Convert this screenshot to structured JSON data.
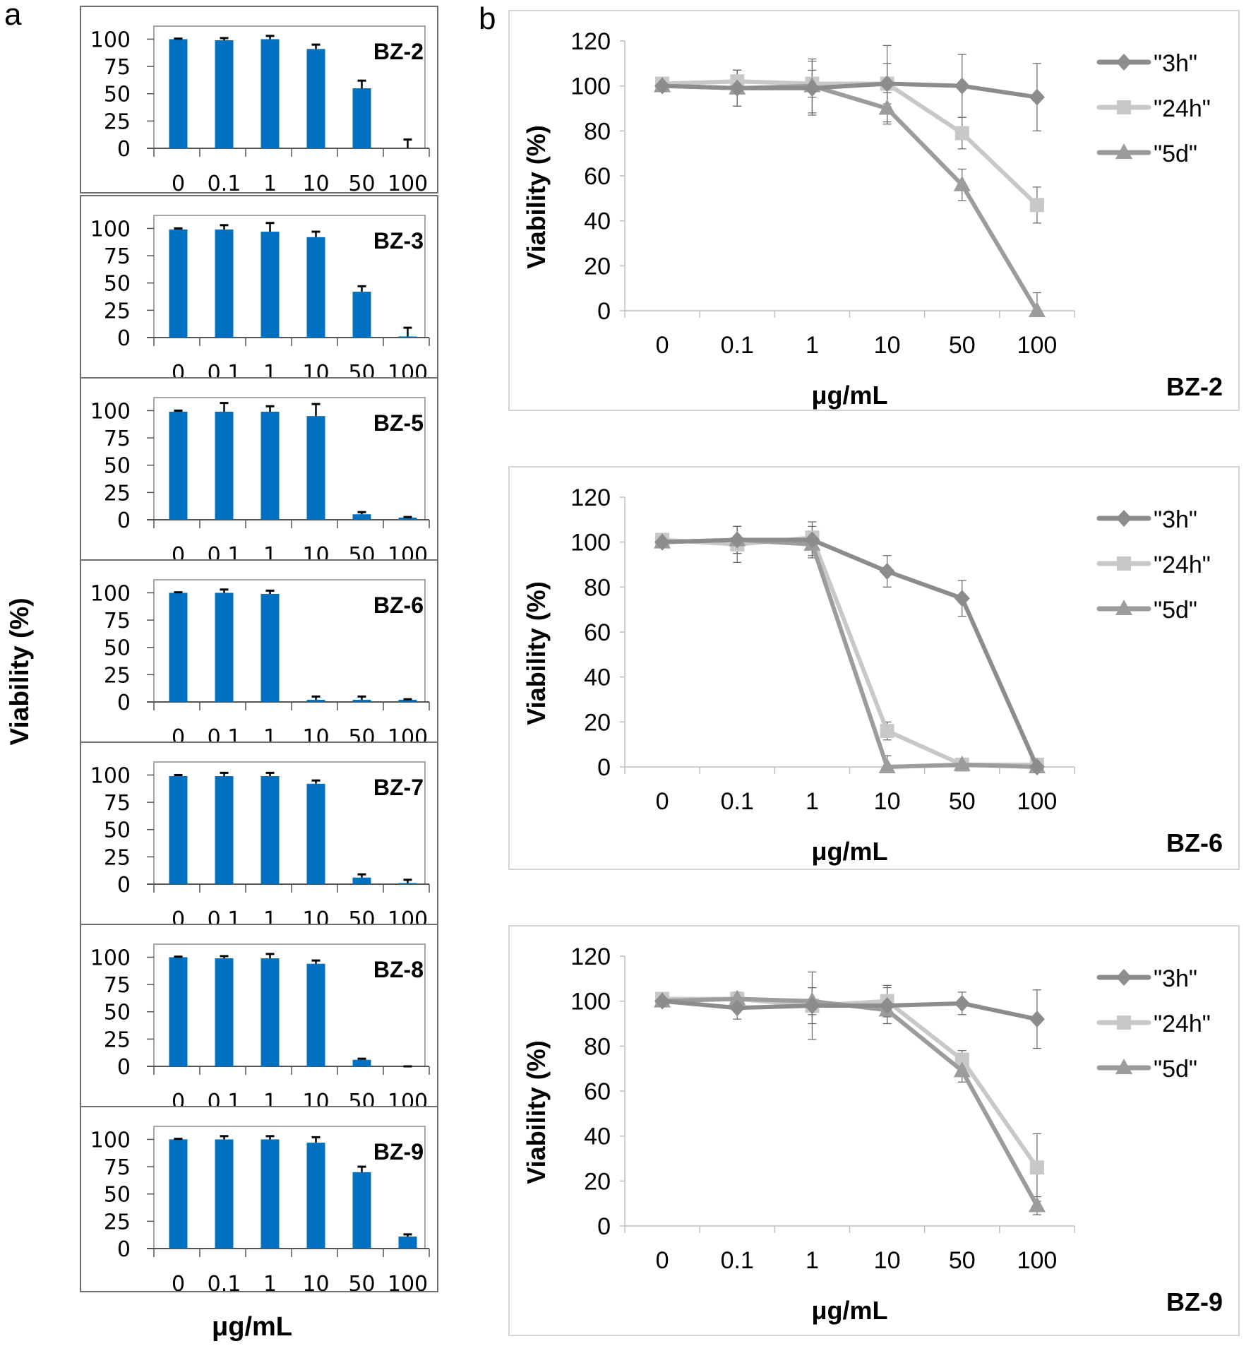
{
  "figure": {
    "panel_a_label": "a",
    "panel_b_label": "b",
    "panel_a_ylabel": "Viability (%)",
    "panel_a_xlabel": "μg/mL"
  },
  "colors": {
    "bar": "#0070c0",
    "error_bar": "#000000",
    "series_3h": "#8c8c8c",
    "series_24h": "#c8c8c8",
    "series_5d": "#9c9c9c",
    "line_axis": "#bfbfbf"
  },
  "chart_data": [
    {
      "type": "bar",
      "title": "BZ-2",
      "xlabel": "μg/mL",
      "ylabel": "Viability (%)",
      "categories": [
        "0",
        "0.1",
        "1",
        "10",
        "50",
        "100"
      ],
      "values": [
        100,
        99,
        100,
        91,
        55,
        0
      ],
      "errors": [
        0.5,
        2,
        3,
        4,
        7,
        8
      ],
      "yticks": [
        "0",
        "25",
        "50",
        "75",
        "100"
      ],
      "ylim": [
        0,
        110
      ],
      "grid": false,
      "legend": "none"
    },
    {
      "type": "bar",
      "title": "BZ-3",
      "xlabel": "μg/mL",
      "ylabel": "Viability (%)",
      "categories": [
        "0",
        "0.1",
        "1",
        "10",
        "50",
        "100"
      ],
      "values": [
        99,
        99,
        97,
        92,
        42,
        1
      ],
      "errors": [
        1,
        4,
        8,
        5,
        5,
        8
      ],
      "yticks": [
        "0",
        "25",
        "50",
        "75",
        "100"
      ],
      "ylim": [
        0,
        110
      ],
      "grid": false,
      "legend": "none"
    },
    {
      "type": "bar",
      "title": "BZ-5",
      "xlabel": "μg/mL",
      "ylabel": "Viability (%)",
      "categories": [
        "0",
        "0.1",
        "1",
        "10",
        "50",
        "100"
      ],
      "values": [
        99,
        99,
        99,
        95,
        5,
        2
      ],
      "errors": [
        1,
        8,
        5,
        11,
        2,
        0.5
      ],
      "yticks": [
        "0",
        "25",
        "50",
        "75",
        "100"
      ],
      "ylim": [
        0,
        110
      ],
      "grid": false,
      "legend": "none"
    },
    {
      "type": "bar",
      "title": "BZ-6",
      "xlabel": "μg/mL",
      "ylabel": "Viability (%)",
      "categories": [
        "0",
        "0.1",
        "1",
        "10",
        "50",
        "100"
      ],
      "values": [
        100,
        100,
        99,
        2,
        2,
        2
      ],
      "errors": [
        0.5,
        3,
        3,
        3,
        3,
        0.5
      ],
      "yticks": [
        "0",
        "25",
        "50",
        "75",
        "100"
      ],
      "ylim": [
        0,
        110
      ],
      "grid": false,
      "legend": "none"
    },
    {
      "type": "bar",
      "title": "BZ-7",
      "xlabel": "μg/mL",
      "ylabel": "Viability (%)",
      "categories": [
        "0",
        "0.1",
        "1",
        "10",
        "50",
        "100"
      ],
      "values": [
        99,
        99,
        99,
        92,
        6,
        1
      ],
      "errors": [
        1,
        3,
        3,
        3,
        3,
        3
      ],
      "yticks": [
        "0",
        "25",
        "50",
        "75",
        "100"
      ],
      "ylim": [
        0,
        110
      ],
      "grid": false,
      "legend": "none"
    },
    {
      "type": "bar",
      "title": "BZ-8",
      "xlabel": "μg/mL",
      "ylabel": "Viability (%)",
      "categories": [
        "0",
        "0.1",
        "1",
        "10",
        "50",
        "100"
      ],
      "values": [
        100,
        99,
        99,
        94,
        6,
        0
      ],
      "errors": [
        0.5,
        2,
        4,
        3,
        1,
        0
      ],
      "yticks": [
        "0",
        "25",
        "50",
        "75",
        "100"
      ],
      "ylim": [
        0,
        110
      ],
      "grid": false,
      "legend": "none"
    },
    {
      "type": "bar",
      "title": "BZ-9",
      "xlabel": "μg/mL",
      "ylabel": "Viability (%)",
      "categories": [
        "0",
        "0.1",
        "1",
        "10",
        "50",
        "100"
      ],
      "values": [
        100,
        100,
        100,
        97,
        70,
        11
      ],
      "errors": [
        0.5,
        3,
        3,
        5,
        5,
        2
      ],
      "yticks": [
        "0",
        "25",
        "50",
        "75",
        "100"
      ],
      "ylim": [
        0,
        110
      ],
      "grid": false,
      "legend": "none"
    },
    {
      "type": "line",
      "title": "BZ-2",
      "xlabel": "μg/mL",
      "ylabel": "Viability (%)",
      "x": [
        "0",
        "0.1",
        "1",
        "10",
        "50",
        "100"
      ],
      "yticks": [
        "0",
        "20",
        "40",
        "60",
        "80",
        "100",
        "120"
      ],
      "ylim": [
        0,
        120
      ],
      "grid": false,
      "legend": "right",
      "series": [
        {
          "name": "\"3h\"",
          "marker": "diamond",
          "values": [
            100,
            99,
            99,
            101,
            100,
            95
          ],
          "errors": [
            1,
            8,
            12,
            17,
            14,
            15
          ]
        },
        {
          "name": "\"24h\"",
          "marker": "square",
          "values": [
            101,
            102,
            101,
            101,
            79,
            47
          ],
          "errors": [
            1,
            5,
            6,
            9,
            7,
            8
          ]
        },
        {
          "name": "\"5d\"",
          "marker": "triangle",
          "values": [
            100,
            99,
            100,
            90,
            56,
            0
          ],
          "errors": [
            1,
            8,
            12,
            7,
            7,
            8
          ]
        }
      ]
    },
    {
      "type": "line",
      "title": "BZ-6",
      "xlabel": "μg/mL",
      "ylabel": "Viability (%)",
      "x": [
        "0",
        "0.1",
        "1",
        "10",
        "50",
        "100"
      ],
      "yticks": [
        "0",
        "20",
        "40",
        "60",
        "80",
        "100",
        "120"
      ],
      "ylim": [
        0,
        120
      ],
      "grid": false,
      "legend": "right",
      "series": [
        {
          "name": "\"3h\"",
          "marker": "diamond",
          "values": [
            100,
            101,
            101,
            87,
            75,
            0
          ],
          "errors": [
            1,
            6,
            8,
            7,
            8,
            1
          ]
        },
        {
          "name": "\"24h\"",
          "marker": "square",
          "values": [
            101,
            99,
            102,
            16,
            1,
            1
          ],
          "errors": [
            1,
            8,
            5,
            4,
            1,
            1
          ]
        },
        {
          "name": "\"5d\"",
          "marker": "triangle",
          "values": [
            100,
            101,
            99,
            0,
            1,
            0
          ],
          "errors": [
            1,
            6,
            5,
            5,
            1,
            1
          ]
        }
      ]
    },
    {
      "type": "line",
      "title": "BZ-9",
      "xlabel": "μg/mL",
      "ylabel": "Viability (%)",
      "x": [
        "0",
        "0.1",
        "1",
        "10",
        "50",
        "100"
      ],
      "yticks": [
        "0",
        "20",
        "40",
        "60",
        "80",
        "100",
        "120"
      ],
      "ylim": [
        0,
        120
      ],
      "grid": false,
      "legend": "right",
      "series": [
        {
          "name": "\"3h\"",
          "marker": "diamond",
          "values": [
            100,
            97,
            98,
            98,
            99,
            92
          ],
          "errors": [
            1,
            5,
            15,
            8,
            5,
            13
          ]
        },
        {
          "name": "\"24h\"",
          "marker": "square",
          "values": [
            101,
            101,
            98,
            100,
            74,
            26
          ],
          "errors": [
            1,
            3,
            8,
            7,
            4,
            15
          ]
        },
        {
          "name": "\"5d\"",
          "marker": "triangle",
          "values": [
            100,
            101,
            100,
            96,
            69,
            9
          ],
          "errors": [
            1,
            3,
            6,
            6,
            5,
            4
          ]
        }
      ]
    }
  ]
}
